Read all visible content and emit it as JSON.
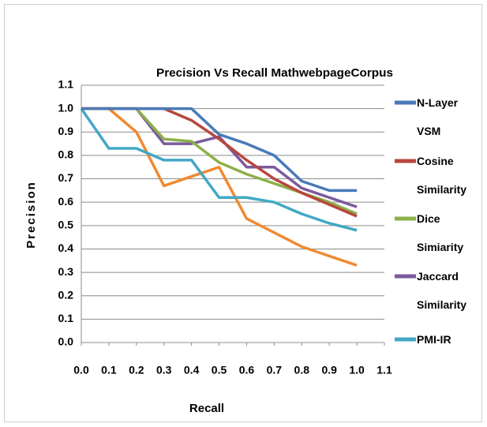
{
  "chart_data": {
    "type": "line",
    "title": "Precision Vs Recall MathwebpageCorpus",
    "xlabel": "Recall",
    "ylabel": "Precision",
    "x": [
      0,
      0.1,
      0.2,
      0.3,
      0.4,
      0.5,
      0.6,
      0.7,
      0.8,
      0.9,
      1.0
    ],
    "series": [
      {
        "name": "N-Layer VSM",
        "color": "#4a7ab8",
        "values": [
          1.0,
          1.0,
          1.0,
          1.0,
          1.0,
          0.89,
          0.85,
          0.8,
          0.69,
          0.65,
          0.65
        ]
      },
      {
        "name": "Cosine Similarity",
        "color": "#b8473f",
        "values": [
          1.0,
          1.0,
          1.0,
          1.0,
          0.95,
          0.87,
          0.78,
          0.7,
          0.64,
          0.59,
          0.54
        ]
      },
      {
        "name": "Dice Simiarity",
        "color": "#8db04a",
        "values": [
          1.0,
          1.0,
          1.0,
          0.87,
          0.86,
          0.77,
          0.72,
          0.68,
          0.64,
          0.6,
          0.55
        ]
      },
      {
        "name": "Jaccard Similarity",
        "color": "#7a5a9c",
        "values": [
          1.0,
          1.0,
          1.0,
          0.85,
          0.85,
          0.88,
          0.75,
          0.75,
          0.66,
          0.62,
          0.58
        ]
      },
      {
        "name": "PMI-IR",
        "color": "#42a8c4",
        "values": [
          1.0,
          0.83,
          0.83,
          0.78,
          0.78,
          0.62,
          0.62,
          0.6,
          0.55,
          0.51,
          0.48
        ]
      },
      {
        "color": "#f08a32",
        "values": [
          1.0,
          1.0,
          0.9,
          0.67,
          0.71,
          0.75,
          0.53,
          0.47,
          0.41,
          0.37,
          0.33
        ]
      }
    ],
    "xlim": [
      0,
      1.1
    ],
    "xticks": [
      {
        "value": 0,
        "label": "0.0"
      },
      0.1,
      0.2,
      0.3,
      0.4,
      0.5,
      0.6,
      0.7,
      0.8,
      0.9,
      {
        "value": 1.0,
        "label": "1.0"
      },
      1.1
    ],
    "ylim": [
      0,
      1.1
    ],
    "yticks": [
      {
        "value": 0,
        "label": "0.0"
      },
      0.1,
      0.2,
      0.3,
      0.4,
      0.5,
      0.6,
      0.7,
      0.8,
      0.9,
      {
        "value": 1.0,
        "label": "1.0"
      },
      1.1
    ],
    "grid": true
  }
}
